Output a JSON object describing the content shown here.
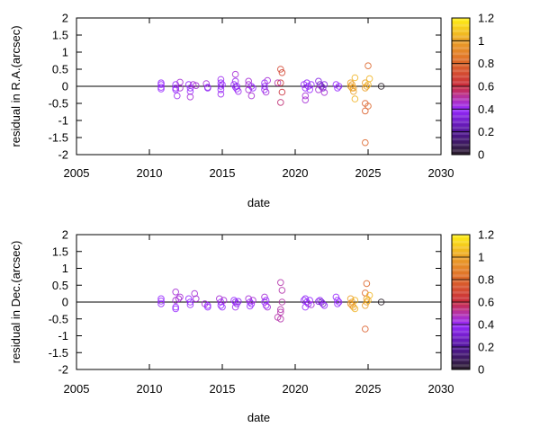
{
  "chart_data": [
    {
      "type": "scatter",
      "xlabel": "date",
      "ylabel": "residual in R.A.(arcsec)",
      "xlim": [
        2005,
        2030
      ],
      "ylim": [
        -2,
        2
      ],
      "xticks": [
        "2005",
        "2010",
        "2015",
        "2020",
        "2025",
        "2030"
      ],
      "yticks": [
        "-2",
        "-1.5",
        "-1",
        "-0.5",
        "0",
        "0.5",
        "1",
        "1.5",
        "2"
      ],
      "grid": false,
      "marker": "open-circle",
      "colorbar": {
        "range": [
          0,
          1.2
        ],
        "ticks": [
          "0",
          "0.2",
          "0.4",
          "0.6",
          "0.8",
          "1",
          "1.2"
        ]
      },
      "points": [
        [
          2010.8,
          0.1,
          0.4
        ],
        [
          2010.8,
          0.05,
          0.4
        ],
        [
          2010.8,
          -0.03,
          0.4
        ],
        [
          2010.8,
          -0.08,
          0.4
        ],
        [
          2011.8,
          0.05,
          0.4
        ],
        [
          2011.8,
          -0.05,
          0.4
        ],
        [
          2011.9,
          -0.28,
          0.42
        ],
        [
          2011.8,
          -0.1,
          0.4
        ],
        [
          2012.1,
          0.12,
          0.45
        ],
        [
          2012.1,
          -0.05,
          0.45
        ],
        [
          2012.7,
          0.05,
          0.4
        ],
        [
          2012.8,
          -0.05,
          0.4
        ],
        [
          2012.8,
          -0.15,
          0.4
        ],
        [
          2012.8,
          -0.31,
          0.45
        ],
        [
          2013.0,
          0.05,
          0.45
        ],
        [
          2013.2,
          0.02,
          0.45
        ],
        [
          2013.9,
          0.08,
          0.45
        ],
        [
          2014.0,
          -0.03,
          0.38
        ],
        [
          2014.0,
          -0.05,
          0.38
        ],
        [
          2014.9,
          0.2,
          0.42
        ],
        [
          2014.9,
          0.1,
          0.4
        ],
        [
          2014.9,
          0.0,
          0.4
        ],
        [
          2014.9,
          -0.1,
          0.4
        ],
        [
          2014.9,
          -0.23,
          0.42
        ],
        [
          2015.0,
          0.05,
          0.4
        ],
        [
          2015.9,
          0.35,
          0.45
        ],
        [
          2015.9,
          0.15,
          0.42
        ],
        [
          2015.8,
          0.05,
          0.38
        ],
        [
          2015.9,
          -0.02,
          0.38
        ],
        [
          2016.0,
          -0.08,
          0.4
        ],
        [
          2016.1,
          -0.15,
          0.42
        ],
        [
          2016.0,
          0.0,
          0.38
        ],
        [
          2016.8,
          0.15,
          0.45
        ],
        [
          2016.8,
          0.05,
          0.45
        ],
        [
          2017.0,
          0.0,
          0.4
        ],
        [
          2016.8,
          -0.1,
          0.45
        ],
        [
          2017.0,
          -0.28,
          0.45
        ],
        [
          2017.1,
          -0.05,
          0.4
        ],
        [
          2017.9,
          0.0,
          0.4
        ],
        [
          2017.9,
          0.1,
          0.4
        ],
        [
          2018.1,
          0.17,
          0.45
        ],
        [
          2017.9,
          -0.1,
          0.4
        ],
        [
          2018.0,
          -0.17,
          0.45
        ],
        [
          2019.0,
          0.5,
          0.7
        ],
        [
          2019.1,
          0.4,
          0.7
        ],
        [
          2019.0,
          0.1,
          0.65
        ],
        [
          2019.1,
          -0.17,
          0.62
        ],
        [
          2019.0,
          -0.47,
          0.55
        ],
        [
          2018.8,
          0.1,
          0.5
        ],
        [
          2020.6,
          0.05,
          0.4
        ],
        [
          2020.7,
          -0.05,
          0.4
        ],
        [
          2020.8,
          0.1,
          0.38
        ],
        [
          2020.9,
          0.0,
          0.38
        ],
        [
          2021.0,
          -0.1,
          0.4
        ],
        [
          2020.7,
          -0.28,
          0.45
        ],
        [
          2020.7,
          -0.4,
          0.45
        ],
        [
          2021.1,
          0.05,
          0.4
        ],
        [
          2021.6,
          0.15,
          0.35
        ],
        [
          2021.7,
          0.05,
          0.3
        ],
        [
          2021.8,
          0.0,
          0.25
        ],
        [
          2021.9,
          -0.05,
          0.3
        ],
        [
          2021.6,
          -0.1,
          0.45
        ],
        [
          2022.0,
          -0.18,
          0.45
        ],
        [
          2022.0,
          0.05,
          0.35
        ],
        [
          2022.8,
          0.05,
          0.4
        ],
        [
          2022.9,
          -0.05,
          0.4
        ],
        [
          2023.0,
          0.0,
          0.4
        ],
        [
          2023.8,
          0.1,
          1.0
        ],
        [
          2023.8,
          0.0,
          1.0
        ],
        [
          2023.9,
          -0.05,
          1.0
        ],
        [
          2024.0,
          -0.15,
          1.0
        ],
        [
          2023.9,
          0.05,
          1.0
        ],
        [
          2024.1,
          0.25,
          1.05
        ],
        [
          2024.1,
          -0.37,
          1.05
        ],
        [
          2024.0,
          -0.05,
          1.0
        ],
        [
          2024.8,
          0.1,
          1.0
        ],
        [
          2024.9,
          0.0,
          1.0
        ],
        [
          2024.8,
          -0.05,
          1.0
        ],
        [
          2025.0,
          0.05,
          1.05
        ],
        [
          2025.1,
          0.22,
          1.05
        ],
        [
          2025.0,
          0.6,
          0.8
        ],
        [
          2024.8,
          -0.5,
          0.78
        ],
        [
          2025.0,
          -0.58,
          0.8
        ],
        [
          2024.8,
          -0.72,
          0.78
        ],
        [
          2024.8,
          -1.65,
          0.8
        ],
        [
          2025.9,
          0.0,
          0.0
        ]
      ]
    },
    {
      "type": "scatter",
      "xlabel": "date",
      "ylabel": "residual in Dec.(arcsec)",
      "xlim": [
        2005,
        2030
      ],
      "ylim": [
        -2,
        2
      ],
      "xticks": [
        "2005",
        "2010",
        "2015",
        "2020",
        "2025",
        "2030"
      ],
      "yticks": [
        "-2",
        "-1.5",
        "-1",
        "-0.5",
        "0",
        "0.5",
        "1",
        "1.5",
        "2"
      ],
      "grid": false,
      "marker": "open-circle",
      "colorbar": {
        "range": [
          0,
          1.2
        ],
        "ticks": [
          "0",
          "0.2",
          "0.4",
          "0.6",
          "0.8",
          "1",
          "1.2"
        ]
      },
      "points": [
        [
          2010.8,
          0.1,
          0.4
        ],
        [
          2010.8,
          0.03,
          0.4
        ],
        [
          2010.8,
          -0.05,
          0.4
        ],
        [
          2011.8,
          0.3,
          0.45
        ],
        [
          2011.8,
          0.05,
          0.45
        ],
        [
          2011.8,
          -0.15,
          0.4
        ],
        [
          2011.8,
          -0.2,
          0.4
        ],
        [
          2012.1,
          0.15,
          0.45
        ],
        [
          2012.0,
          0.1,
          0.45
        ],
        [
          2012.7,
          0.1,
          0.4
        ],
        [
          2012.8,
          0.0,
          0.4
        ],
        [
          2012.8,
          -0.08,
          0.4
        ],
        [
          2013.1,
          0.25,
          0.45
        ],
        [
          2013.2,
          0.1,
          0.45
        ],
        [
          2013.8,
          -0.05,
          0.45
        ],
        [
          2014.0,
          -0.1,
          0.4
        ],
        [
          2014.0,
          -0.15,
          0.4
        ],
        [
          2014.8,
          0.1,
          0.45
        ],
        [
          2014.9,
          0.0,
          0.4
        ],
        [
          2014.9,
          -0.1,
          0.4
        ],
        [
          2015.0,
          -0.15,
          0.4
        ],
        [
          2015.1,
          0.05,
          0.45
        ],
        [
          2015.8,
          0.05,
          0.4
        ],
        [
          2015.9,
          0.0,
          0.38
        ],
        [
          2016.0,
          -0.05,
          0.38
        ],
        [
          2016.1,
          0.02,
          0.38
        ],
        [
          2015.9,
          -0.15,
          0.42
        ],
        [
          2016.8,
          0.1,
          0.45
        ],
        [
          2016.9,
          0.0,
          0.4
        ],
        [
          2017.0,
          -0.05,
          0.4
        ],
        [
          2017.1,
          0.05,
          0.45
        ],
        [
          2016.9,
          -0.12,
          0.4
        ],
        [
          2017.9,
          0.15,
          0.45
        ],
        [
          2017.9,
          0.0,
          0.4
        ],
        [
          2018.0,
          -0.1,
          0.4
        ],
        [
          2018.1,
          -0.15,
          0.45
        ],
        [
          2018.0,
          0.05,
          0.4
        ],
        [
          2019.0,
          0.58,
          0.5
        ],
        [
          2019.1,
          0.35,
          0.5
        ],
        [
          2019.1,
          0.0,
          0.5
        ],
        [
          2019.0,
          -0.22,
          0.5
        ],
        [
          2018.8,
          -0.45,
          0.5
        ],
        [
          2019.0,
          -0.5,
          0.5
        ],
        [
          2019.0,
          -0.3,
          0.5
        ],
        [
          2020.6,
          0.05,
          0.4
        ],
        [
          2020.7,
          0.1,
          0.38
        ],
        [
          2020.8,
          0.0,
          0.38
        ],
        [
          2020.9,
          -0.05,
          0.38
        ],
        [
          2021.0,
          0.05,
          0.4
        ],
        [
          2020.7,
          -0.15,
          0.4
        ],
        [
          2021.1,
          -0.08,
          0.45
        ],
        [
          2021.6,
          0.02,
          0.35
        ],
        [
          2021.8,
          0.0,
          0.25
        ],
        [
          2021.9,
          -0.05,
          0.3
        ],
        [
          2022.0,
          -0.1,
          0.4
        ],
        [
          2021.7,
          0.05,
          0.4
        ],
        [
          2022.8,
          0.15,
          0.4
        ],
        [
          2022.9,
          0.05,
          0.4
        ],
        [
          2022.9,
          -0.05,
          0.4
        ],
        [
          2023.0,
          0.0,
          0.4
        ],
        [
          2023.8,
          0.1,
          1.0
        ],
        [
          2023.9,
          0.0,
          1.0
        ],
        [
          2023.9,
          -0.1,
          1.0
        ],
        [
          2024.0,
          -0.15,
          1.0
        ],
        [
          2024.1,
          0.05,
          1.05
        ],
        [
          2024.1,
          -0.2,
          1.05
        ],
        [
          2023.8,
          -0.05,
          0.95
        ],
        [
          2024.8,
          0.27,
          0.8
        ],
        [
          2024.9,
          0.1,
          1.0
        ],
        [
          2024.9,
          0.0,
          1.0
        ],
        [
          2024.8,
          -0.1,
          1.0
        ],
        [
          2025.0,
          0.05,
          1.05
        ],
        [
          2025.1,
          0.2,
          1.05
        ],
        [
          2024.9,
          0.55,
          0.8
        ],
        [
          2024.8,
          -0.8,
          0.78
        ],
        [
          2025.9,
          0.0,
          0.0
        ]
      ]
    }
  ]
}
